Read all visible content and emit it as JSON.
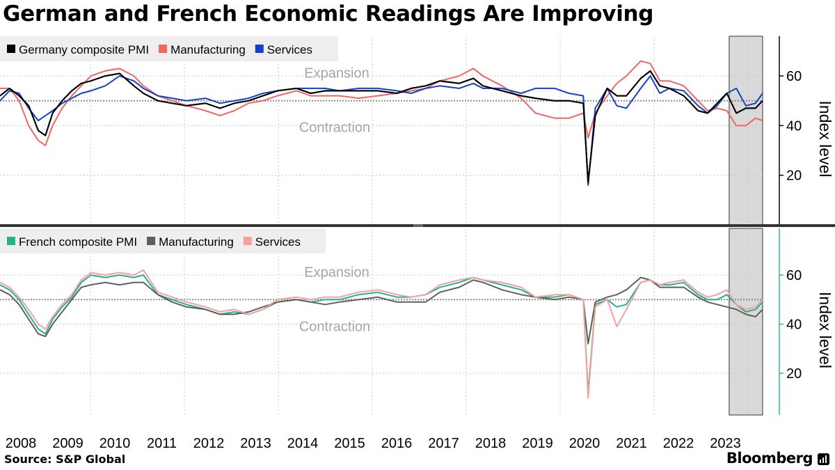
{
  "title": "German and French Economic Readings Are Improving",
  "source": "Source: S&P Global",
  "brand": "Bloomberg",
  "chart_data": [
    {
      "type": "line",
      "ylabel": "Index level",
      "yticks": [
        20,
        40,
        60
      ],
      "ylim": [
        0,
        76
      ],
      "reference_line": 50,
      "zone_labels": {
        "above": "Expansion",
        "below": "Contraction"
      },
      "shaded_period": {
        "start": 2023.25,
        "end": 2023.95
      },
      "x_ticks": [
        "2008",
        "2009",
        "2010",
        "2011",
        "2012",
        "2013",
        "2014",
        "2015",
        "2016",
        "2017",
        "2018",
        "2019",
        "2020",
        "2021",
        "2022",
        "2023"
      ],
      "xlim": [
        2008.0,
        2023.95
      ],
      "legend": "top-left",
      "series": [
        {
          "name": "Germany composite PMI",
          "color": "#000000",
          "x": [
            2008.0,
            2008.2,
            2008.4,
            2008.6,
            2008.8,
            2008.95,
            2009.1,
            2009.3,
            2009.5,
            2009.7,
            2009.9,
            2010.2,
            2010.5,
            2010.8,
            2011.0,
            2011.3,
            2011.6,
            2011.9,
            2012.3,
            2012.6,
            2012.9,
            2013.2,
            2013.5,
            2013.8,
            2014.2,
            2014.5,
            2014.8,
            2015.1,
            2015.5,
            2015.9,
            2016.3,
            2016.6,
            2016.9,
            2017.2,
            2017.6,
            2017.9,
            2018.1,
            2018.5,
            2018.9,
            2019.2,
            2019.6,
            2019.9,
            2020.2,
            2020.3,
            2020.45,
            2020.7,
            2020.9,
            2021.1,
            2021.4,
            2021.6,
            2021.8,
            2022.0,
            2022.3,
            2022.6,
            2022.8,
            2023.0,
            2023.2,
            2023.4,
            2023.6,
            2023.8,
            2023.95
          ],
          "values": [
            52,
            55,
            52,
            48,
            38,
            36,
            45,
            50,
            54,
            57,
            58,
            60,
            61,
            56,
            53,
            50,
            49,
            48,
            49,
            47,
            49,
            50,
            52,
            54,
            55,
            53,
            54,
            54,
            54,
            54,
            53,
            55,
            56,
            58,
            57,
            59,
            56,
            54,
            52,
            51,
            50,
            50,
            49,
            17,
            44,
            55,
            52,
            52,
            59,
            62,
            56,
            55,
            52,
            46,
            45,
            49,
            53,
            45,
            47,
            47,
            50
          ]
        },
        {
          "name": "Manufacturing",
          "color": "#ef6664",
          "x": [
            2008.0,
            2008.2,
            2008.4,
            2008.6,
            2008.8,
            2008.95,
            2009.1,
            2009.3,
            2009.5,
            2009.7,
            2009.9,
            2010.2,
            2010.5,
            2010.8,
            2011.0,
            2011.3,
            2011.6,
            2011.9,
            2012.3,
            2012.6,
            2012.9,
            2013.2,
            2013.5,
            2013.8,
            2014.2,
            2014.5,
            2014.8,
            2015.1,
            2015.5,
            2015.9,
            2016.3,
            2016.6,
            2016.9,
            2017.2,
            2017.6,
            2017.9,
            2018.1,
            2018.5,
            2018.9,
            2019.2,
            2019.6,
            2019.9,
            2020.2,
            2020.3,
            2020.45,
            2020.7,
            2020.9,
            2021.1,
            2021.4,
            2021.6,
            2021.8,
            2022.0,
            2022.3,
            2022.6,
            2022.8,
            2023.0,
            2023.2,
            2023.4,
            2023.6,
            2023.8,
            2023.95
          ],
          "values": [
            55,
            55,
            50,
            40,
            34,
            32,
            40,
            47,
            52,
            56,
            60,
            62,
            63,
            60,
            56,
            52,
            50,
            48,
            46,
            44,
            46,
            49,
            50,
            52,
            54,
            52,
            52,
            52,
            51,
            52,
            53,
            54,
            55,
            58,
            60,
            63,
            60,
            56,
            51,
            45,
            43,
            43,
            45,
            35,
            45,
            52,
            57,
            60,
            66,
            65,
            58,
            58,
            56,
            50,
            46,
            47,
            46,
            40,
            40,
            43,
            42
          ]
        },
        {
          "name": "Services",
          "color": "#1241c8",
          "x": [
            2008.0,
            2008.2,
            2008.4,
            2008.6,
            2008.8,
            2008.95,
            2009.1,
            2009.3,
            2009.5,
            2009.7,
            2009.9,
            2010.2,
            2010.5,
            2010.8,
            2011.0,
            2011.3,
            2011.6,
            2011.9,
            2012.3,
            2012.6,
            2012.9,
            2013.2,
            2013.5,
            2013.8,
            2014.2,
            2014.5,
            2014.8,
            2015.1,
            2015.5,
            2015.9,
            2016.3,
            2016.6,
            2016.9,
            2017.2,
            2017.6,
            2017.9,
            2018.1,
            2018.5,
            2018.9,
            2019.2,
            2019.6,
            2019.9,
            2020.2,
            2020.3,
            2020.45,
            2020.7,
            2020.9,
            2021.1,
            2021.4,
            2021.6,
            2021.8,
            2022.0,
            2022.3,
            2022.6,
            2022.8,
            2023.0,
            2023.2,
            2023.4,
            2023.6,
            2023.8,
            2023.95
          ],
          "values": [
            50,
            54,
            53,
            47,
            42,
            44,
            46,
            49,
            51,
            53,
            54,
            56,
            60,
            58,
            55,
            52,
            51,
            50,
            51,
            49,
            50,
            51,
            53,
            54,
            55,
            55,
            55,
            54,
            55,
            55,
            54,
            53,
            55,
            56,
            55,
            57,
            55,
            55,
            53,
            55,
            55,
            53,
            52,
            16,
            47,
            55,
            48,
            47,
            55,
            60,
            53,
            55,
            54,
            48,
            45,
            48,
            53,
            55,
            48,
            49,
            53
          ]
        }
      ]
    },
    {
      "type": "line",
      "ylabel": "Index level",
      "yticks": [
        20,
        40,
        60
      ],
      "ylim": [
        3,
        79
      ],
      "reference_line": 50,
      "zone_labels": {
        "above": "Expansion",
        "below": "Contraction"
      },
      "shaded_period": {
        "start": 2023.25,
        "end": 2023.95
      },
      "xlim": [
        2008.0,
        2023.95
      ],
      "legend": "top-left",
      "series": [
        {
          "name": "French composite PMI",
          "color": "#25b38c",
          "x": [
            2008.0,
            2008.2,
            2008.4,
            2008.6,
            2008.8,
            2008.95,
            2009.1,
            2009.3,
            2009.5,
            2009.7,
            2009.9,
            2010.2,
            2010.5,
            2010.8,
            2011.0,
            2011.3,
            2011.6,
            2011.9,
            2012.3,
            2012.6,
            2012.9,
            2013.2,
            2013.5,
            2013.8,
            2014.2,
            2014.5,
            2014.8,
            2015.1,
            2015.5,
            2015.9,
            2016.3,
            2016.6,
            2016.9,
            2017.2,
            2017.6,
            2017.9,
            2018.1,
            2018.5,
            2018.9,
            2019.2,
            2019.6,
            2019.9,
            2020.2,
            2020.3,
            2020.45,
            2020.7,
            2020.9,
            2021.1,
            2021.4,
            2021.6,
            2021.8,
            2022.0,
            2022.3,
            2022.6,
            2022.8,
            2023.0,
            2023.2,
            2023.4,
            2023.6,
            2023.8,
            2023.95
          ],
          "values": [
            56,
            54,
            50,
            44,
            38,
            36,
            42,
            47,
            51,
            57,
            60,
            59,
            60,
            59,
            60,
            52,
            50,
            48,
            46,
            44,
            45,
            44,
            46,
            49,
            50,
            49,
            50,
            50,
            52,
            53,
            51,
            51,
            52,
            55,
            57,
            59,
            58,
            56,
            54,
            51,
            51,
            52,
            50,
            12,
            48,
            50,
            47,
            48,
            57,
            58,
            56,
            56,
            57,
            52,
            50,
            50,
            52,
            48,
            45,
            46,
            49
          ]
        },
        {
          "name": "Manufacturing",
          "color": "#5e5e5e",
          "x": [
            2008.0,
            2008.2,
            2008.4,
            2008.6,
            2008.8,
            2008.95,
            2009.1,
            2009.3,
            2009.5,
            2009.7,
            2009.9,
            2010.2,
            2010.5,
            2010.8,
            2011.0,
            2011.3,
            2011.6,
            2011.9,
            2012.3,
            2012.6,
            2012.9,
            2013.2,
            2013.5,
            2013.8,
            2014.2,
            2014.5,
            2014.8,
            2015.1,
            2015.5,
            2015.9,
            2016.3,
            2016.6,
            2016.9,
            2017.2,
            2017.6,
            2017.9,
            2018.1,
            2018.5,
            2018.9,
            2019.2,
            2019.6,
            2019.9,
            2020.2,
            2020.3,
            2020.45,
            2020.7,
            2020.9,
            2021.1,
            2021.4,
            2021.6,
            2021.8,
            2022.0,
            2022.3,
            2022.6,
            2022.8,
            2023.0,
            2023.2,
            2023.4,
            2023.6,
            2023.8,
            2023.95
          ],
          "values": [
            54,
            52,
            48,
            42,
            36,
            35,
            40,
            45,
            50,
            55,
            56,
            57,
            56,
            57,
            57,
            52,
            49,
            47,
            46,
            44,
            44,
            45,
            47,
            49,
            50,
            49,
            48,
            49,
            50,
            51,
            49,
            49,
            49,
            53,
            55,
            58,
            57,
            54,
            52,
            51,
            50,
            51,
            50,
            32,
            49,
            51,
            52,
            54,
            59,
            58,
            55,
            55,
            55,
            51,
            49,
            48,
            47,
            46,
            44,
            43,
            46
          ]
        },
        {
          "name": "Services",
          "color": "#f4a19d",
          "x": [
            2008.0,
            2008.2,
            2008.4,
            2008.6,
            2008.8,
            2008.95,
            2009.1,
            2009.3,
            2009.5,
            2009.7,
            2009.9,
            2010.2,
            2010.5,
            2010.8,
            2011.0,
            2011.3,
            2011.6,
            2011.9,
            2012.3,
            2012.6,
            2012.9,
            2013.2,
            2013.5,
            2013.8,
            2014.2,
            2014.5,
            2014.8,
            2015.1,
            2015.5,
            2015.9,
            2016.3,
            2016.6,
            2016.9,
            2017.2,
            2017.6,
            2017.9,
            2018.1,
            2018.5,
            2018.9,
            2019.2,
            2019.6,
            2019.9,
            2020.2,
            2020.3,
            2020.45,
            2020.7,
            2020.9,
            2021.1,
            2021.4,
            2021.6,
            2021.8,
            2022.0,
            2022.3,
            2022.6,
            2022.8,
            2023.0,
            2023.2,
            2023.4,
            2023.6,
            2023.8,
            2023.95
          ],
          "values": [
            57,
            55,
            51,
            46,
            40,
            38,
            43,
            48,
            52,
            58,
            61,
            60,
            61,
            60,
            62,
            53,
            51,
            49,
            47,
            45,
            46,
            44,
            46,
            50,
            51,
            50,
            51,
            51,
            53,
            54,
            52,
            51,
            52,
            56,
            58,
            59,
            58,
            57,
            55,
            51,
            52,
            52,
            50,
            10,
            47,
            50,
            39,
            46,
            57,
            58,
            56,
            57,
            58,
            53,
            51,
            52,
            54,
            48,
            46,
            47,
            50
          ]
        }
      ]
    }
  ]
}
